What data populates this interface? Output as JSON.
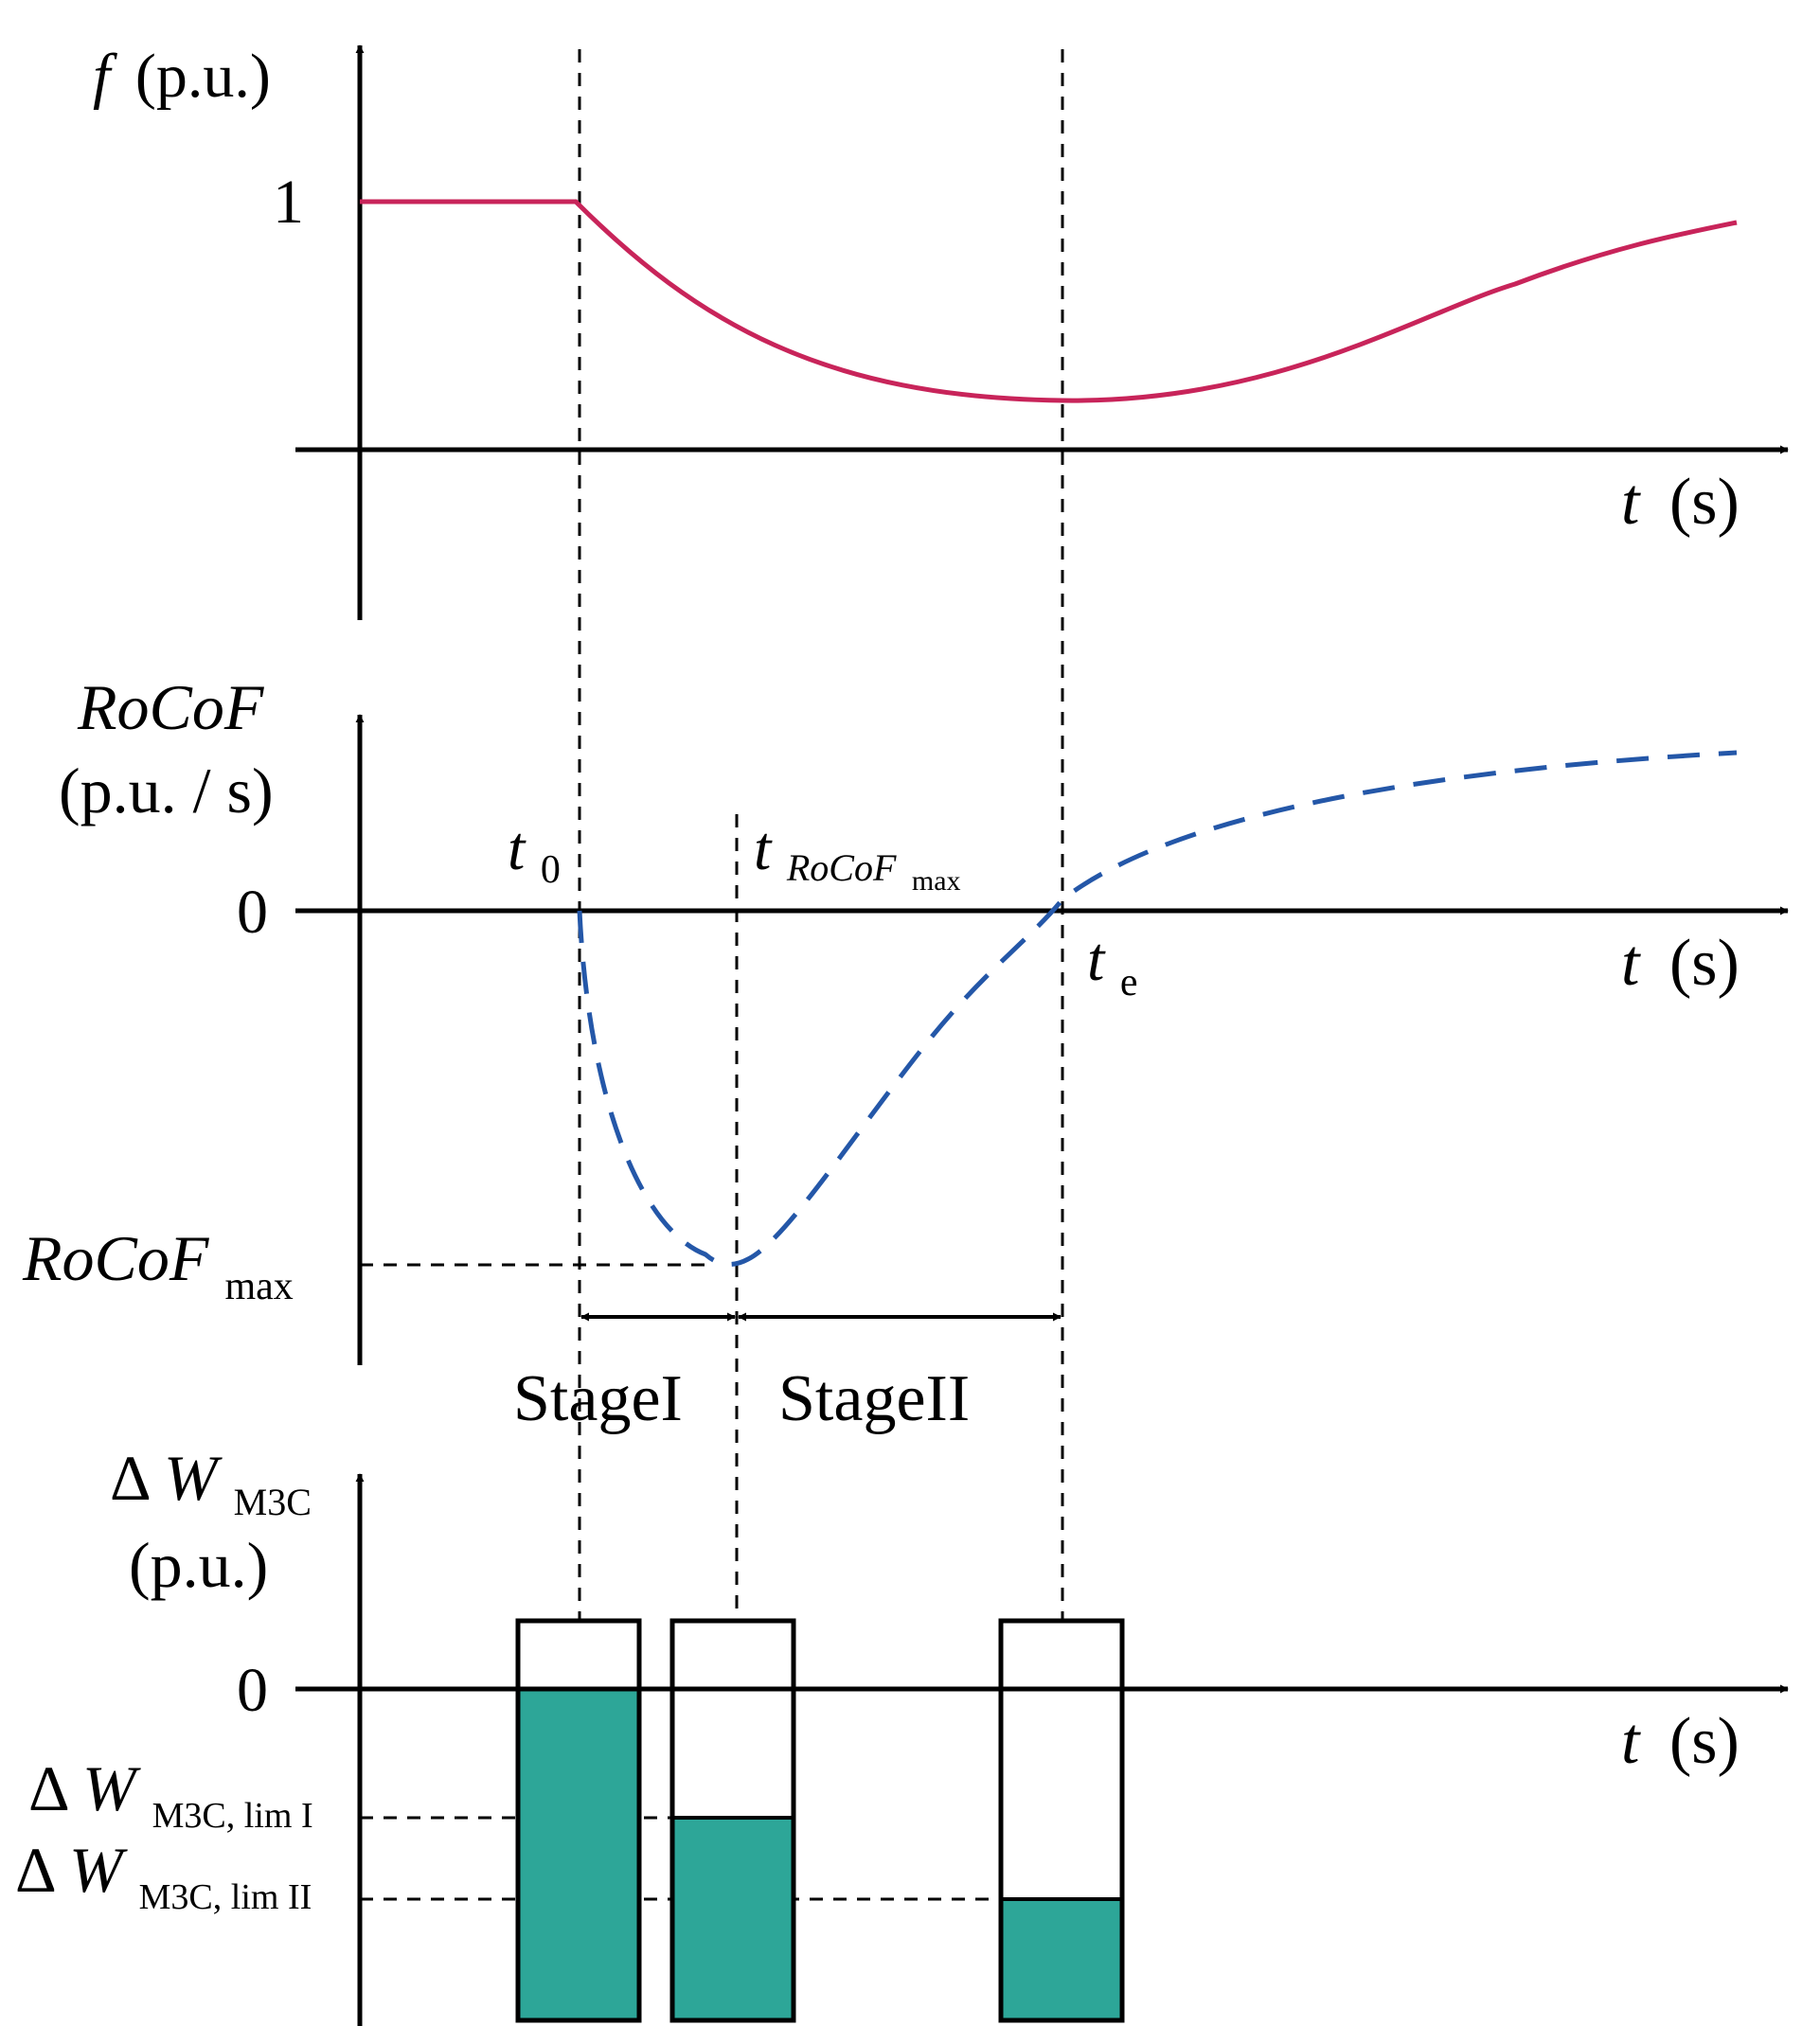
{
  "colors": {
    "frequency_curve": "#c8245a",
    "rocof_curve": "#2457a8",
    "energy_fill": "#2da698",
    "axis": "#000000"
  },
  "panel_frequency": {
    "y_label_italic": "f",
    "y_label_unit": "(p.u.)",
    "y_tick": "1",
    "x_label_italic": "t",
    "x_label_unit": "(s)"
  },
  "panel_rocof": {
    "y_label_line1": "RoCoF",
    "y_label_line2": "(p.u. / s)",
    "zero_tick": "0",
    "t0_main": "t",
    "t0_sub": "0",
    "tmax_main": "t",
    "tmax_sub": "RoCoF",
    "tmax_subsub": "max",
    "te_main": "t",
    "te_sub": "e",
    "min_label_main": "RoCoF",
    "min_label_sub": "max",
    "x_label_italic": "t",
    "x_label_unit": "(s)"
  },
  "stages": {
    "stage1": "StageI",
    "stage2": "StageII"
  },
  "panel_energy": {
    "y_label_delta": "Δ",
    "y_label_main": "W",
    "y_label_sub": "M3C",
    "y_label_unit": "(p.u.)",
    "zero_tick": "0",
    "x_label_italic": "t",
    "x_label_unit": "(s)",
    "lim1_delta": "Δ",
    "lim1_main": "W",
    "lim1_sub": "M3C, lim I",
    "lim2_delta": "Δ",
    "lim2_main": "W",
    "lim2_sub": "M3C, lim II"
  }
}
